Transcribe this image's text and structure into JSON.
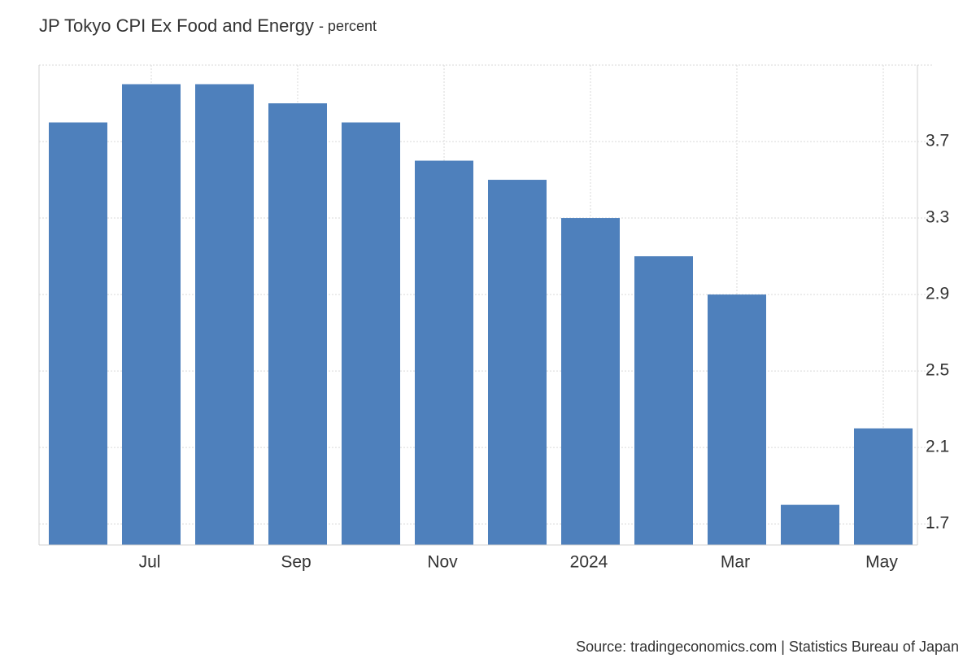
{
  "chart_data": {
    "type": "bar",
    "title": "JP Tokyo CPI Ex Food and Energy",
    "subtitle": "- percent",
    "source": "Source: tradingeconomics.com | Statistics Bureau of Japan",
    "categories": [
      null,
      "Jul",
      null,
      "Sep",
      null,
      "Nov",
      null,
      "2024",
      null,
      "Mar",
      null,
      "May"
    ],
    "values": [
      3.8,
      4.0,
      4.0,
      3.9,
      3.8,
      3.6,
      3.5,
      3.3,
      3.1,
      2.9,
      1.8,
      2.2
    ],
    "color": "#4e80bc",
    "ylim": [
      1.59,
      4.1
    ],
    "yticks": [
      1.7,
      2.1,
      2.5,
      2.9,
      3.3,
      3.7
    ],
    "grid": true
  }
}
